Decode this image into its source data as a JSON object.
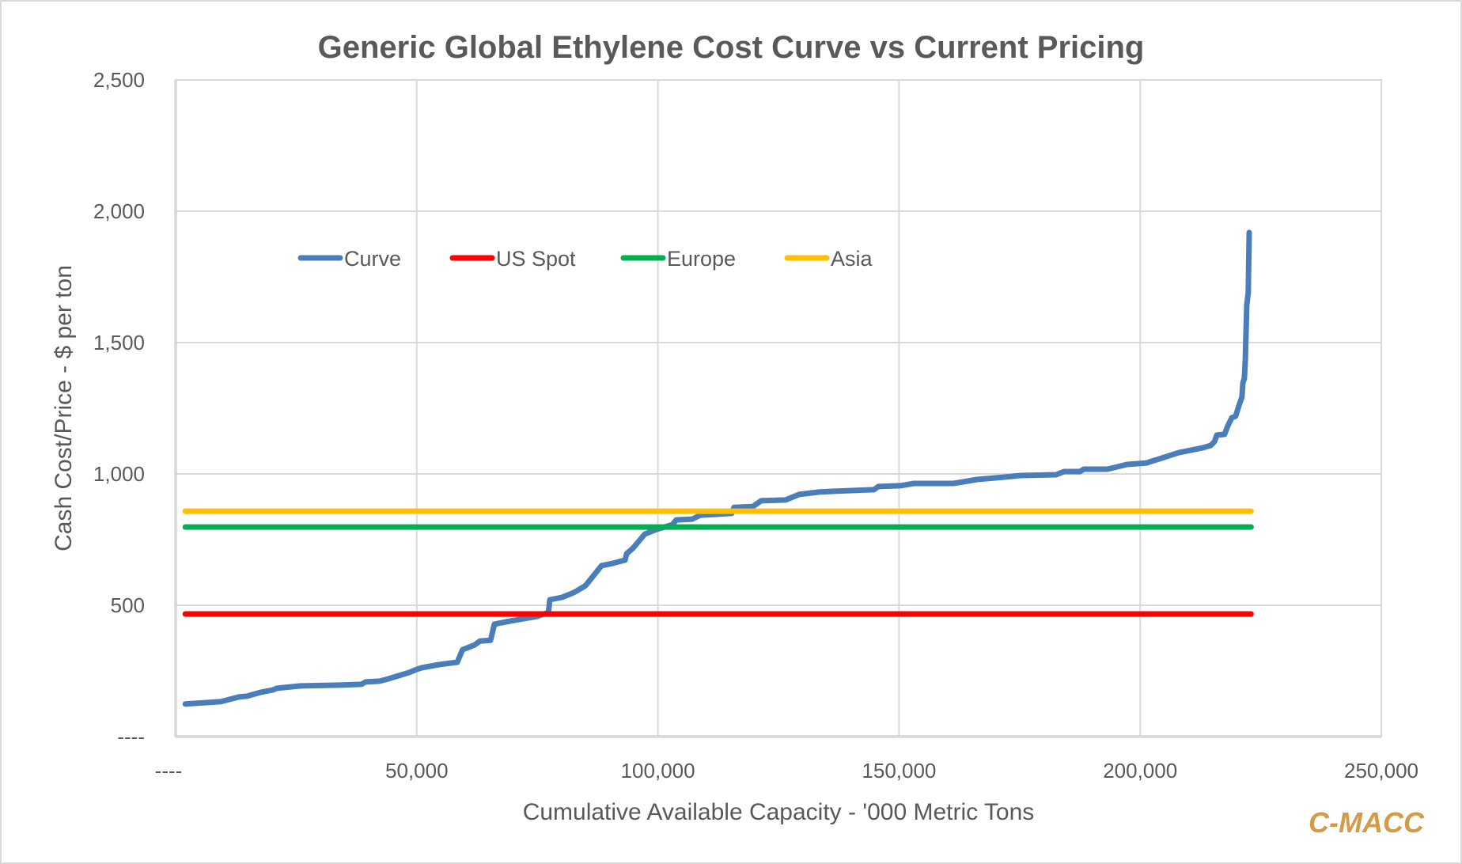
{
  "chart_data": {
    "type": "line",
    "title": "Generic Global Ethylene Cost Curve vs Current Pricing",
    "xlabel": "Cumulative Available Capacity - '000 Metric Tons",
    "ylabel": "Cash Cost/Price - $ per ton",
    "xlim": [
      0,
      250000
    ],
    "ylim": [
      0,
      2500
    ],
    "x_ticks": [
      0,
      50000,
      100000,
      150000,
      200000,
      250000
    ],
    "x_tick_labels": [
      "----",
      "50,000",
      "100,000",
      "150,000",
      "200,000",
      "250,000"
    ],
    "y_ticks": [
      0,
      500,
      1000,
      1500,
      2000,
      2500
    ],
    "y_tick_labels": [
      "----",
      "500",
      "1,000",
      "1,500",
      "2,000",
      "2,500"
    ],
    "grid": true,
    "legend_position": "upper-left inside plot",
    "watermark": "C-MACC",
    "series": [
      {
        "name": "Curve",
        "color": "#4a7ebb",
        "x": [
          2000,
          9400,
          13100,
          14800,
          17700,
          20200,
          21000,
          25900,
          34100,
          38500,
          39400,
          42300,
          44100,
          48400,
          50000,
          51000,
          54600,
          58400,
          59500,
          62000,
          63100,
          65300,
          66100,
          69400,
          75100,
          77300,
          77600,
          80100,
          82500,
          83300,
          85000,
          87400,
          88300,
          90700,
          93200,
          93500,
          94800,
          97300,
          99700,
          103000,
          103800,
          107100,
          108800,
          112000,
          115300,
          115800,
          119700,
          121400,
          126500,
          129300,
          133400,
          136600,
          144800,
          145700,
          150300,
          153100,
          161300,
          166200,
          171900,
          175200,
          182600,
          184200,
          187500,
          188300,
          193200,
          197300,
          201400,
          202300,
          203900,
          208000,
          211300,
          212900,
          214600,
          215400,
          215900,
          217500,
          218200,
          219000,
          219800,
          220500,
          221100,
          221300,
          221600,
          221800,
          222100,
          222400,
          222600
        ],
        "y": [
          124,
          133,
          151,
          154,
          169,
          178,
          184,
          193,
          196,
          199,
          208,
          211,
          220,
          244,
          256,
          262,
          274,
          283,
          331,
          349,
          364,
          367,
          428,
          440,
          458,
          473,
          521,
          530,
          548,
          556,
          575,
          630,
          651,
          660,
          672,
          696,
          717,
          771,
          789,
          807,
          825,
          828,
          843,
          846,
          850,
          873,
          876,
          898,
          901,
          922,
          931,
          934,
          940,
          952,
          955,
          964,
          964,
          979,
          988,
          994,
          997,
          1009,
          1009,
          1018,
          1018,
          1036,
          1042,
          1048,
          1057,
          1081,
          1093,
          1099,
          1108,
          1123,
          1148,
          1151,
          1184,
          1214,
          1220,
          1262,
          1292,
          1346,
          1364,
          1434,
          1642,
          1690,
          1919
        ]
      },
      {
        "name": "US Spot",
        "color": "#ff0000",
        "x": [
          2000,
          223000
        ],
        "y": [
          467,
          467
        ]
      },
      {
        "name": "Europe",
        "color": "#00b050",
        "x": [
          2000,
          223000
        ],
        "y": [
          798,
          798
        ]
      },
      {
        "name": "Asia",
        "color": "#ffc000",
        "x": [
          2000,
          223000
        ],
        "y": [
          858,
          858
        ]
      }
    ]
  }
}
